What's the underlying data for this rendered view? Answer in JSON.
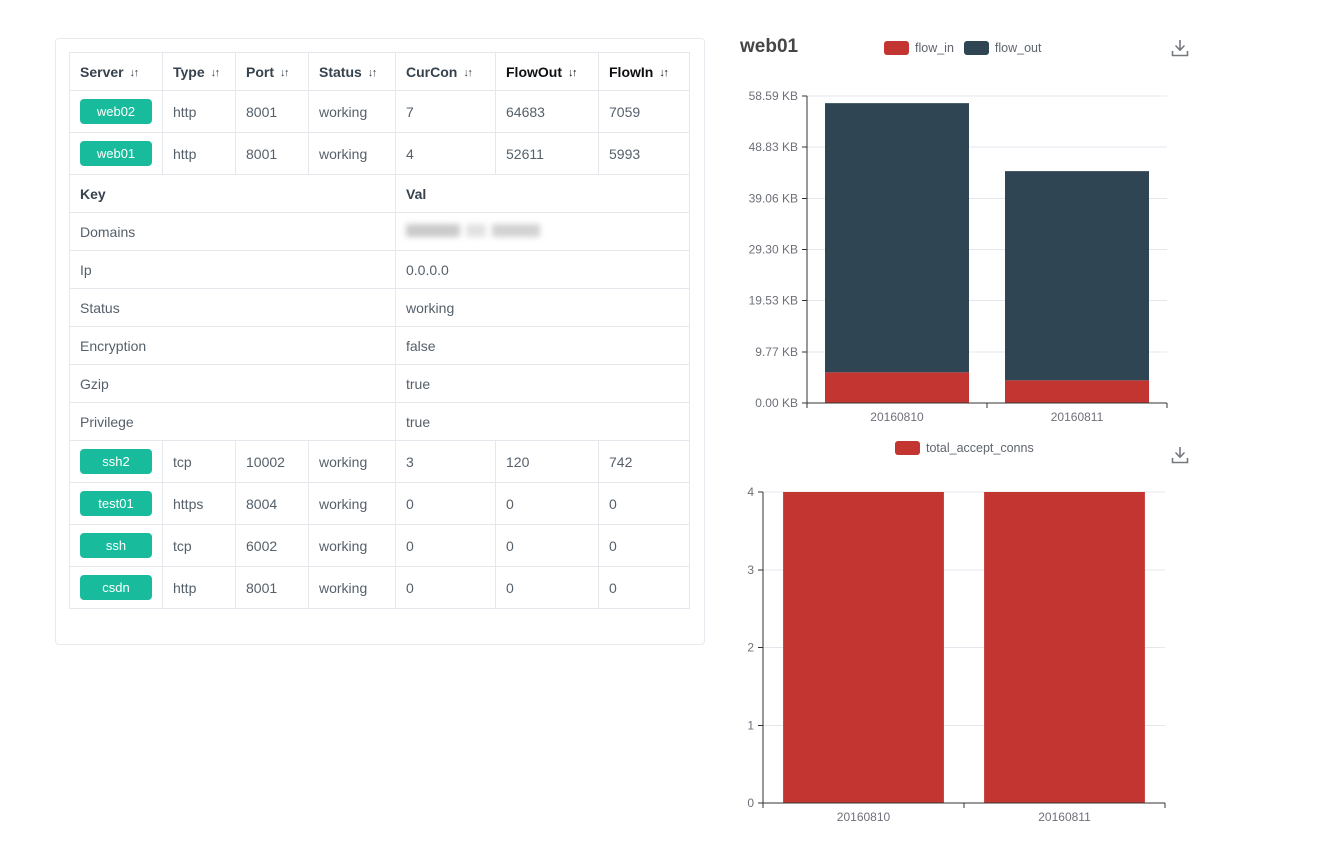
{
  "table": {
    "columns": [
      {
        "label": "Server",
        "sortable": true
      },
      {
        "label": "Type",
        "sortable": true
      },
      {
        "label": "Port",
        "sortable": true
      },
      {
        "label": "Status",
        "sortable": true
      },
      {
        "label": "CurCon",
        "sortable": true
      },
      {
        "label": "FlowOut",
        "sortable": true,
        "strong": true
      },
      {
        "label": "FlowIn",
        "sortable": true,
        "strong": true
      }
    ],
    "server_rows_top": [
      {
        "server": "web02",
        "type": "http",
        "port": "8001",
        "status": "working",
        "curcon": "7",
        "flowout": "64683",
        "flowin": "7059"
      },
      {
        "server": "web01",
        "type": "http",
        "port": "8001",
        "status": "working",
        "curcon": "4",
        "flowout": "52611",
        "flowin": "5993"
      }
    ],
    "kv_header": {
      "key": "Key",
      "val": "Val"
    },
    "kv_rows": [
      {
        "key": "Domains",
        "val": "",
        "redacted": true
      },
      {
        "key": "Ip",
        "val": "0.0.0.0"
      },
      {
        "key": "Status",
        "val": "working"
      },
      {
        "key": "Encryption",
        "val": "false"
      },
      {
        "key": "Gzip",
        "val": "true"
      },
      {
        "key": "Privilege",
        "val": "true"
      }
    ],
    "server_rows_bottom": [
      {
        "server": "ssh2",
        "type": "tcp",
        "port": "10002",
        "status": "working",
        "curcon": "3",
        "flowout": "120",
        "flowin": "742"
      },
      {
        "server": "test01",
        "type": "https",
        "port": "8004",
        "status": "working",
        "curcon": "0",
        "flowout": "0",
        "flowin": "0"
      },
      {
        "server": "ssh",
        "type": "tcp",
        "port": "6002",
        "status": "working",
        "curcon": "0",
        "flowout": "0",
        "flowin": "0"
      },
      {
        "server": "csdn",
        "type": "http",
        "port": "8001",
        "status": "working",
        "curcon": "0",
        "flowout": "0",
        "flowin": "0"
      }
    ]
  },
  "icons": {
    "sort": "↓↑",
    "download": "download-tray-arrow"
  },
  "colors": {
    "badge_green": "#18bc9c",
    "flow_in_red": "#c23531",
    "flow_out_navy": "#2f4554",
    "axis": "#333333",
    "axis_label": "#6e7079",
    "grid": "#e4e7ec",
    "table_border": "#e4e8ec"
  },
  "chart_data": [
    {
      "type": "bar",
      "stacked": true,
      "title": "web01",
      "categories": [
        "20160810",
        "20160811"
      ],
      "series": [
        {
          "name": "flow_in",
          "color": "#c23531",
          "values": [
            5993,
            4430
          ]
        },
        {
          "name": "flow_out",
          "color": "#2f4554",
          "values": [
            52611,
            40890
          ]
        }
      ],
      "unit": "bytes",
      "y_max": 60000,
      "y_ticks": [
        {
          "value": 0,
          "label": "0.00 KB"
        },
        {
          "value": 10000,
          "label": "9.77 KB"
        },
        {
          "value": 20000,
          "label": "19.53 KB"
        },
        {
          "value": 30000,
          "label": "29.30 KB"
        },
        {
          "value": 40000,
          "label": "39.06 KB"
        },
        {
          "value": 50000,
          "label": "48.83 KB"
        },
        {
          "value": 60000,
          "label": "58.59 KB"
        }
      ],
      "bar_ratio": 0.8,
      "grid": true,
      "legend_position": "top-center"
    },
    {
      "type": "bar",
      "stacked": false,
      "title": "",
      "categories": [
        "20160810",
        "20160811"
      ],
      "series": [
        {
          "name": "total_accept_conns",
          "color": "#c23531",
          "values": [
            4,
            4
          ]
        }
      ],
      "y_max": 4,
      "y_ticks": [
        {
          "value": 0,
          "label": "0"
        },
        {
          "value": 1,
          "label": "1"
        },
        {
          "value": 2,
          "label": "2"
        },
        {
          "value": 3,
          "label": "3"
        },
        {
          "value": 4,
          "label": "4"
        }
      ],
      "bar_ratio": 0.8,
      "grid": true,
      "legend_position": "top-center"
    }
  ]
}
